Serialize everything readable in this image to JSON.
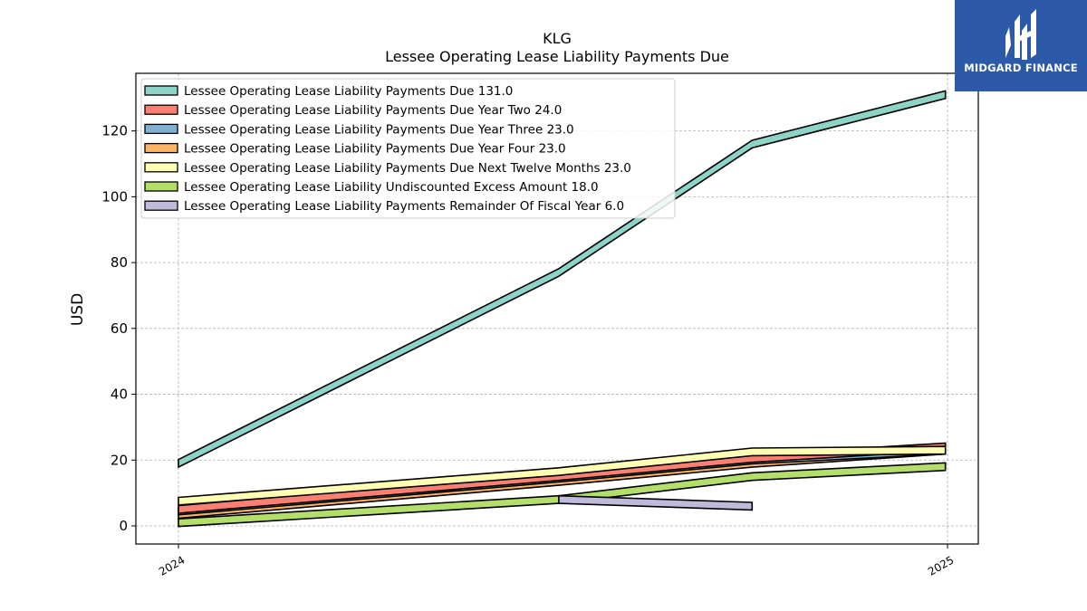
{
  "header": {
    "ticker": "KLG",
    "title": "Lessee Operating Lease Liability Payments Due"
  },
  "brand": {
    "name": "MIDGARD FINANCE",
    "logo_icon": "midgard-logo-icon",
    "background_color": "#2d5aa8"
  },
  "chart_data": {
    "type": "area",
    "title": "KLG\nLessee Operating Lease Liability Payments Due",
    "xlabel": "",
    "ylabel": "USD",
    "x_ticks": [
      "2024",
      "2025"
    ],
    "y_ticks": [
      0,
      20,
      40,
      60,
      80,
      100,
      120
    ],
    "ylim": [
      -5.5,
      137.5
    ],
    "grid": true,
    "legend_position": "upper left",
    "x": [
      "2024-01-01",
      "2024-06-30",
      "2024-09-30",
      "2024-12-31"
    ],
    "series": [
      {
        "name": "Lessee Operating Lease Liability Payments Due",
        "legend_value": "131.0",
        "color": "#8dd3c7",
        "values": [
          19.0,
          77.0,
          116.0,
          131.0
        ]
      },
      {
        "name": "Lessee Operating Lease Liability Payments Due Year Two",
        "legend_value": "24.0",
        "color": "#fb8072",
        "values": [
          5.0,
          15.0,
          20.5,
          24.0
        ]
      },
      {
        "name": "Lessee Operating Lease Liability Payments Due Year Three",
        "legend_value": "23.0",
        "color": "#80b1d3",
        "values": [
          4.5,
          14.5,
          20.0,
          23.0
        ]
      },
      {
        "name": "Lessee Operating Lease Liability Payments Due Year Four",
        "legend_value": "23.0",
        "color": "#fdb462",
        "values": [
          3.5,
          13.5,
          19.0,
          23.0
        ]
      },
      {
        "name": "Lessee Operating Lease Liability Payments Due Next Twelve Months",
        "legend_value": "23.0",
        "color": "#ffffb3",
        "values": [
          7.5,
          16.5,
          22.5,
          23.0
        ]
      },
      {
        "name": "Lessee Operating Lease Liability Undiscounted Excess Amount",
        "legend_value": "18.0",
        "color": "#b3de69",
        "values": [
          1.0,
          8.0,
          15.0,
          18.0
        ]
      },
      {
        "name": "Lessee Operating Lease Liability Payments Remainder Of Fiscal Year",
        "legend_value": "6.0",
        "color": "#bebada",
        "values": [
          null,
          8.0,
          6.0,
          null
        ]
      }
    ]
  }
}
